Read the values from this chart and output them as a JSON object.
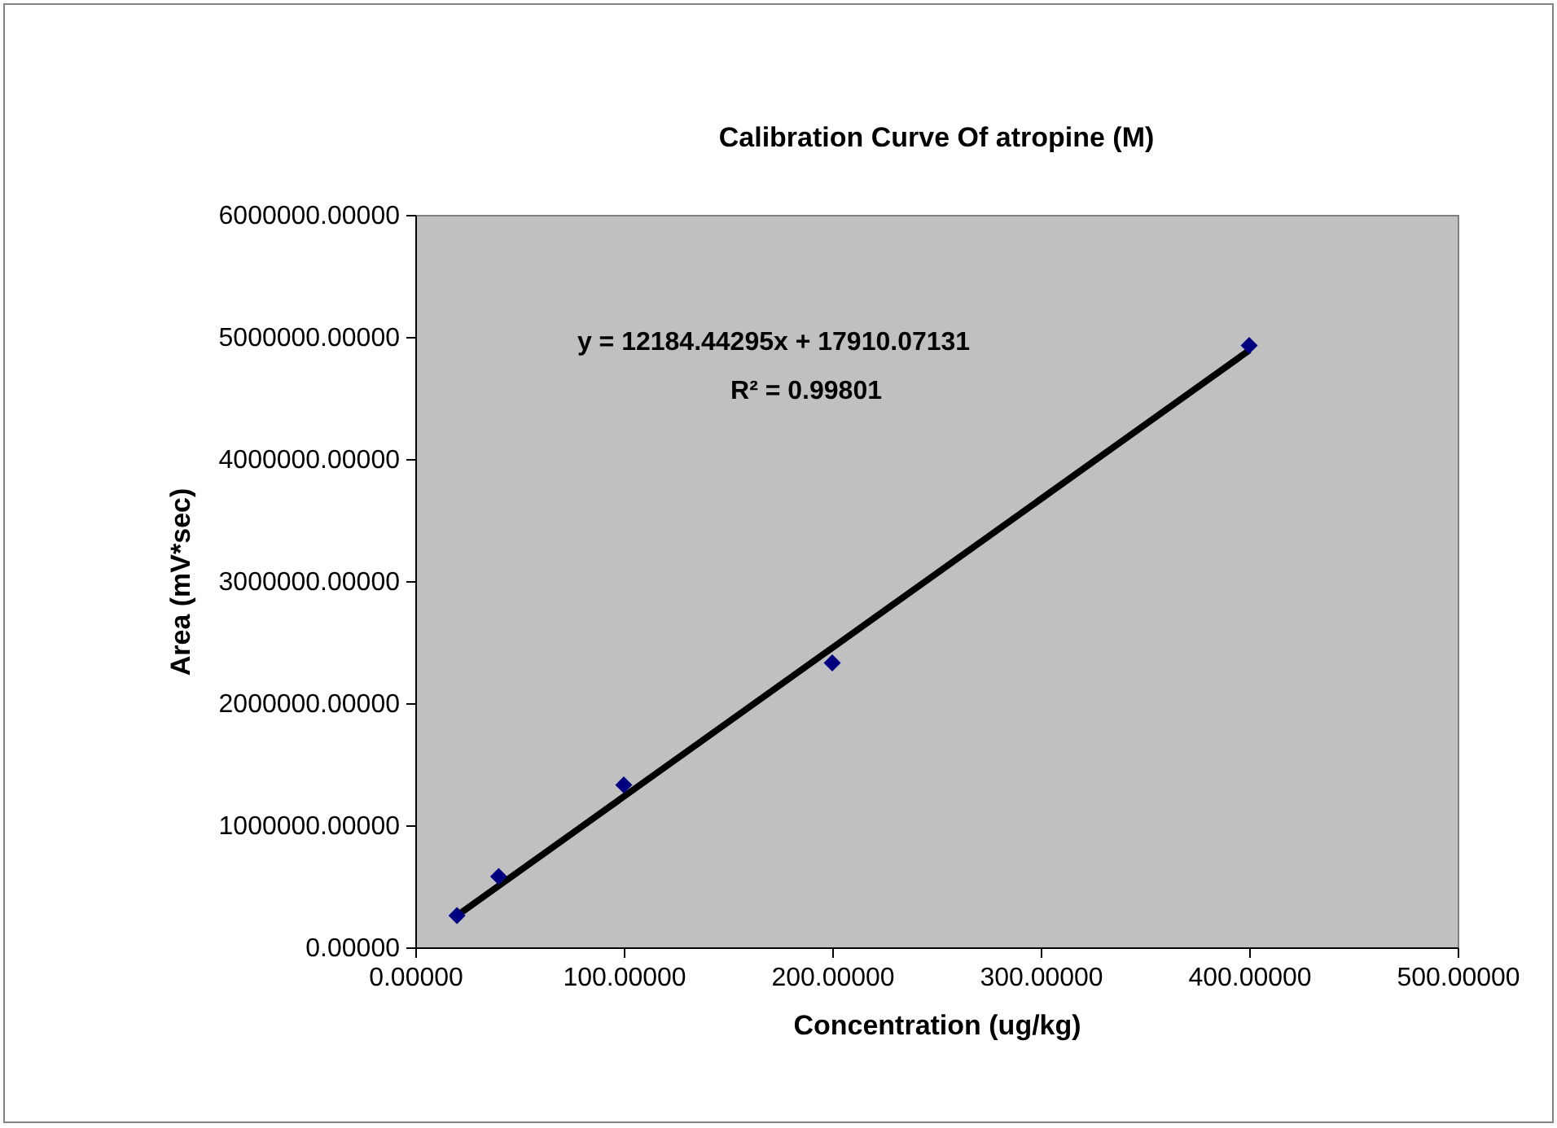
{
  "chart_data": {
    "type": "scatter",
    "title": "Calibration Curve Of atropine (M)",
    "xlabel": "Concentration (ug/kg)",
    "ylabel": "Area (mV*sec)",
    "x": [
      20,
      40,
      100,
      200,
      400
    ],
    "series": [
      {
        "color": "#000080",
        "values": [
          260000,
          580000,
          1330000,
          2330000,
          4930000
        ],
        "marker": "diamond"
      },
      {
        "type": "line",
        "color": "#000000",
        "x": [
          20,
          400
        ],
        "values": [
          260000,
          4890000
        ],
        "marker": "none"
      }
    ],
    "xlim": [
      0,
      500
    ],
    "xticks": [
      {
        "value": 0,
        "label": "0.00000"
      },
      {
        "value": 100,
        "label": "100.00000"
      },
      {
        "value": 200,
        "label": "200.00000"
      },
      {
        "value": 300,
        "label": "300.00000"
      },
      {
        "value": 400,
        "label": "400.00000"
      },
      {
        "value": 500,
        "label": "500.00000"
      }
    ],
    "ylim": [
      0,
      6000000
    ],
    "yticks": [
      {
        "value": 0,
        "label": "0.00000"
      },
      {
        "value": 1000000,
        "label": "1000000.00000"
      },
      {
        "value": 2000000,
        "label": "2000000.00000"
      },
      {
        "value": 3000000,
        "label": "3000000.00000"
      },
      {
        "value": 4000000,
        "label": "4000000.00000"
      },
      {
        "value": 5000000,
        "label": "5000000.00000"
      },
      {
        "value": 6000000,
        "label": "6000000.00000"
      }
    ],
    "annotations": [
      "y = 12184.44295x + 17910.07131",
      "R² = 0.99801"
    ],
    "grid": false
  }
}
